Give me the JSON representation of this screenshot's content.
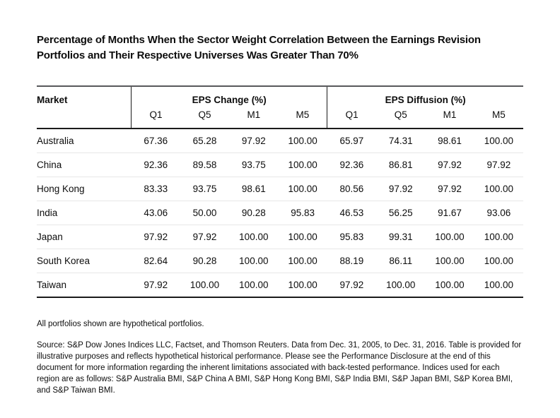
{
  "title_lines": [
    "Percentage of Months When the Sector Weight Correlation Between the Earnings Revision",
    "Portfolios and Their Respective Universes Was Greater Than 70%"
  ],
  "table": {
    "market_header": "Market",
    "groups": [
      {
        "label": "EPS Change (%)",
        "columns": [
          "Q1",
          "Q5",
          "M1",
          "M5"
        ]
      },
      {
        "label": "EPS Diffusion (%)",
        "columns": [
          "Q1",
          "Q5",
          "M1",
          "M5"
        ]
      }
    ],
    "rows": [
      {
        "market": "Australia",
        "values": [
          "67.36",
          "65.28",
          "97.92",
          "100.00",
          "65.97",
          "74.31",
          "98.61",
          "100.00"
        ]
      },
      {
        "market": "China",
        "values": [
          "92.36",
          "89.58",
          "93.75",
          "100.00",
          "92.36",
          "86.81",
          "97.92",
          "97.92"
        ]
      },
      {
        "market": "Hong Kong",
        "values": [
          "83.33",
          "93.75",
          "98.61",
          "100.00",
          "80.56",
          "97.92",
          "97.92",
          "100.00"
        ]
      },
      {
        "market": "India",
        "values": [
          "43.06",
          "50.00",
          "90.28",
          "95.83",
          "46.53",
          "56.25",
          "91.67",
          "93.06"
        ]
      },
      {
        "market": "Japan",
        "values": [
          "97.92",
          "97.92",
          "100.00",
          "100.00",
          "95.83",
          "99.31",
          "100.00",
          "100.00"
        ]
      },
      {
        "market": "South Korea",
        "values": [
          "82.64",
          "90.28",
          "100.00",
          "100.00",
          "88.19",
          "86.11",
          "100.00",
          "100.00"
        ]
      },
      {
        "market": "Taiwan",
        "values": [
          "97.92",
          "100.00",
          "100.00",
          "100.00",
          "97.92",
          "100.00",
          "100.00",
          "100.00"
        ]
      }
    ]
  },
  "footnotes": {
    "hypothetical": "All portfolios shown are hypothetical portfolios.",
    "source": "Source: S&P Dow Jones Indices LLC, Factset, and Thomson Reuters. Data from Dec. 31, 2005, to Dec. 31, 2016. Table is provided for illustrative purposes and reflects hypothetical historical performance. Please see the Performance Disclosure at the end of this document for more information regarding the inherent limitations associated with back-tested performance. Indices used for each region are as follows: S&P Australia BMI, S&P China A BMI, S&P Hong Kong BMI, S&P India BMI, S&P Japan BMI, S&P Korea BMI, and S&P Taiwan BMI."
  },
  "colors": {
    "top_rule": "#58595b",
    "heavy_rule": "#1a1a1a",
    "row_separator": "#e7e7e7",
    "text": "#0d0d0d"
  }
}
